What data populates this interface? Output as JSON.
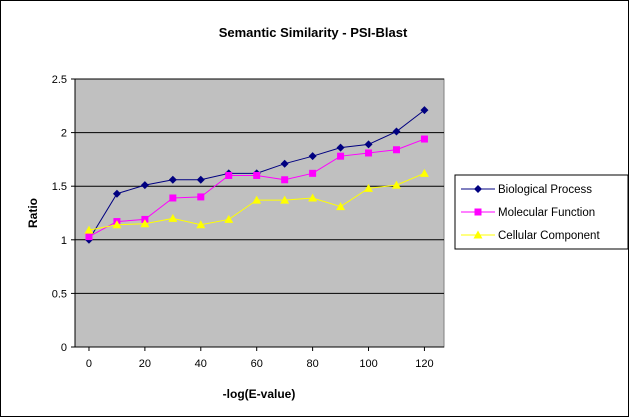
{
  "chart_data": {
    "type": "line",
    "title": "Semantic Similarity - PSI-Blast",
    "xlabel": "-log(E-value)",
    "ylabel": "Ratio",
    "xlim": [
      -5,
      127
    ],
    "ylim": [
      0,
      2.5
    ],
    "x_ticks": [
      0,
      20,
      40,
      60,
      80,
      100,
      120
    ],
    "y_ticks": [
      0,
      0.5,
      1,
      1.5,
      2,
      2.5
    ],
    "x_tick_labels": [
      "0",
      "20",
      "40",
      "60",
      "80",
      "100",
      "120"
    ],
    "y_tick_labels": [
      "0",
      "0.5",
      "1",
      "1.5",
      "2",
      "2.5"
    ],
    "grid": "horizontal",
    "legend_position": "right",
    "plot_background": "#c0c0c0",
    "x": [
      0,
      10,
      20,
      30,
      40,
      50,
      60,
      70,
      80,
      90,
      100,
      110,
      120
    ],
    "series": [
      {
        "name": "Biological Process",
        "color": "#000080",
        "marker": "diamond",
        "values": [
          1.0,
          1.43,
          1.51,
          1.56,
          1.56,
          1.62,
          1.62,
          1.71,
          1.78,
          1.86,
          1.89,
          2.01,
          2.21
        ]
      },
      {
        "name": "Molecular Function",
        "color": "#ff00ff",
        "marker": "square",
        "values": [
          1.03,
          1.17,
          1.19,
          1.39,
          1.4,
          1.6,
          1.6,
          1.56,
          1.62,
          1.78,
          1.81,
          1.84,
          1.94
        ]
      },
      {
        "name": "Cellular Component",
        "color": "#ffff00",
        "marker": "triangle",
        "values": [
          1.09,
          1.14,
          1.15,
          1.2,
          1.14,
          1.19,
          1.37,
          1.37,
          1.39,
          1.31,
          1.48,
          1.51,
          1.62
        ]
      }
    ]
  }
}
